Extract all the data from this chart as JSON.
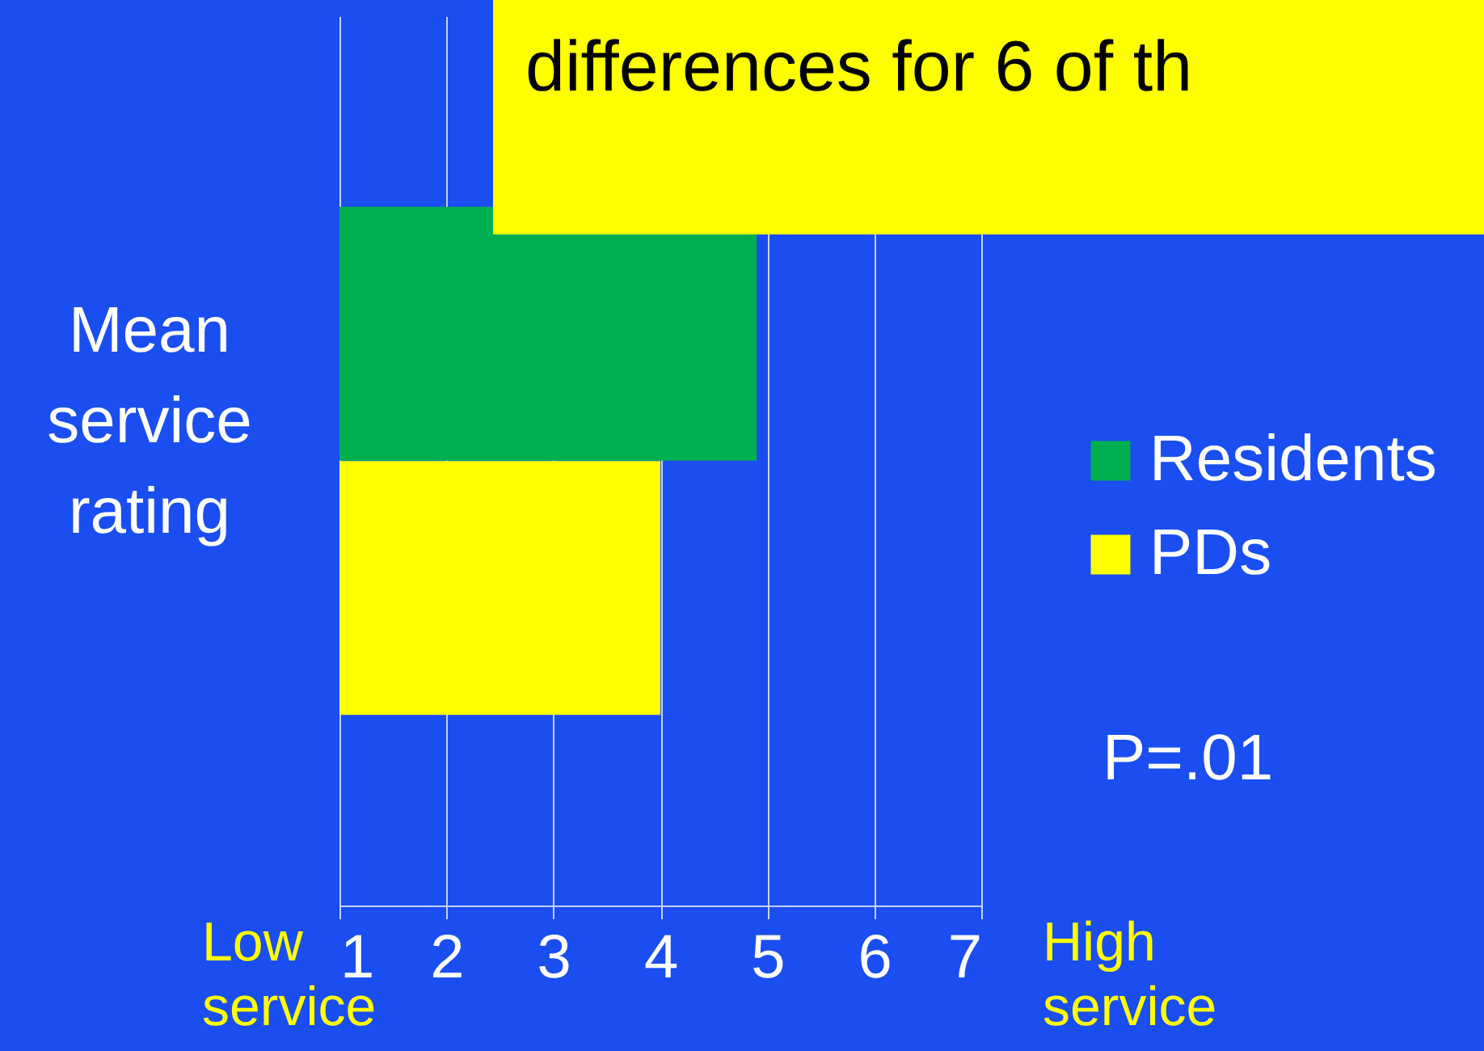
{
  "chart_data": {
    "type": "bar",
    "orientation": "horizontal",
    "title": "differences for 6 of th",
    "ylabel": "Mean service rating",
    "categories": [
      null
    ],
    "series": [
      {
        "name": "Residents",
        "color": "#00b050",
        "values": [
          4.9
        ]
      },
      {
        "name": "PDs",
        "color": "#ffff00",
        "values": [
          4.0
        ]
      }
    ],
    "xlim": [
      1,
      7
    ],
    "xticks": [
      1,
      2,
      3,
      4,
      5,
      6,
      7
    ],
    "grid": "x",
    "legend": "right",
    "annotations": [
      "Low service",
      "High service",
      "P=.01"
    ]
  }
}
